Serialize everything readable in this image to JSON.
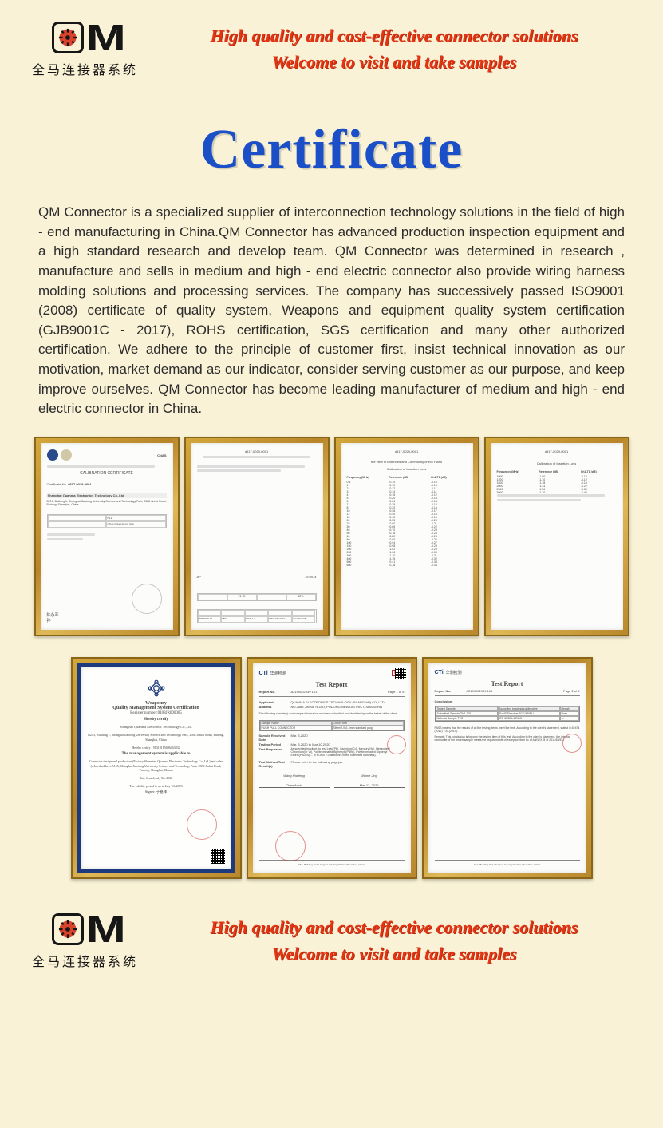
{
  "colors": {
    "page_bg": "#f9f2d6",
    "accent_red": "#e33513",
    "title_blue": "#1b4fc7",
    "frame_gold_light": "#dfb858",
    "frame_gold_dark": "#b8862a",
    "cert_blue_border": "#1d3a7c",
    "logo_black": "#161616",
    "gear_red": "#d9432b"
  },
  "logo": {
    "text": "M",
    "chinese": "全马连接器系统",
    "gear_icon_name": "gear-icon"
  },
  "tagline": {
    "line1": "High quality and cost-effective connector solutions",
    "line2": "Welcome to visit and take samples"
  },
  "title": "Certificate",
  "body": "QM Connector is a specialized supplier of interconnection technology solutions in the field of high - end manufacturing in China.QM Connector has advanced production inspection equipment and a high standard research and develop team. QM Connector was determined in research , manufacture and sells in medium and high - end electric connector also provide wiring harness molding solutions and processing services. The company has successively passed ISO9001 (2008) certificate of quality system, Weapons and equipment quality system certification (GJB9001C - 2017), ROHS certification, SGS certification and many other authorized certification. We adhere to the principle of customer first, insist technical innovation as our motivation, market demand as our indicator, consider serving customer as our purpose, and keep improve ourselves. QM Connector has become leading manufacturer of medium and high - end electric connector in China.",
  "certs_row1": [
    {
      "type": "calibration",
      "badges": [
        "ilac-MRA",
        "CNAS"
      ],
      "title": "CALIBRATION CERTIFICATE",
      "cert_no_label": "Certificate No.",
      "cert_no": "d517-0029-0001",
      "org": "Shanghai Quanma Electronics Technology Co.,Ltd",
      "addr": "B213, Building 1, Shanghai Jiaotong University Science and Technology Park, 2588 Jinhai Road, Pudong, Shanghai, China",
      "instrument": "PLD",
      "model": "PRO-SN/ZKB-01 300"
    },
    {
      "type": "data-sheet",
      "header_no": "d517-0029-0001",
      "temp_label": "AP",
      "temp_val": "79.0014",
      "room_temp": "21 °C",
      "humidity": "60%",
      "table_rows": [
        [
          "88005039-10",
          "0837",
          "0001-1-2",
          "MFG:270.0310",
          "H2:170.03dB"
        ]
      ]
    },
    {
      "type": "data-list",
      "header_no": "d517-0029-0001",
      "section": "the view of Extended and Commodity check Plans",
      "subtitle": "Calibration of Insertion Loss",
      "cols": [
        "Frequency (MHz)",
        "Reference (dB)",
        "Ch1-T1 (dB)"
      ],
      "rows": [
        [
          "0.3",
          "-0.10",
          "-0.10"
        ],
        [
          "1",
          "-0.10",
          "-0.10"
        ],
        [
          "2",
          "-0.12",
          "-0.11"
        ],
        [
          "3",
          "-0.14",
          "-0.11"
        ],
        [
          "4",
          "-0.16",
          "-0.12"
        ],
        [
          "5",
          "-0.20",
          "-0.13"
        ],
        [
          "6",
          "-0.24",
          "-0.14"
        ],
        [
          "7",
          "-0.28",
          "-0.15"
        ],
        [
          "8",
          "-0.30",
          "-0.16"
        ],
        [
          "10",
          "-0.36",
          "-0.17"
        ],
        [
          "12",
          "-0.40",
          "-0.18"
        ],
        [
          "15",
          "-0.45",
          "-0.19"
        ],
        [
          "20",
          "-0.55",
          "-0.20"
        ],
        [
          "25",
          "-0.60",
          "-0.21"
        ],
        [
          "30",
          "-0.65",
          "-0.22"
        ],
        [
          "40",
          "-0.70",
          "-0.23"
        ],
        [
          "50",
          "-0.78",
          "-0.24"
        ],
        [
          "60",
          "-0.82",
          "-0.25"
        ],
        [
          "80",
          "-0.90",
          "-0.26"
        ],
        [
          "100",
          "-0.94",
          "-0.27"
        ],
        [
          "150",
          "-0.98",
          "-0.28"
        ],
        [
          "200",
          "-1.02",
          "-0.29"
        ],
        [
          "250",
          "-1.06",
          "-0.30"
        ],
        [
          "300",
          "-1.10",
          "-0.31"
        ],
        [
          "400",
          "-1.15",
          "-0.32"
        ],
        [
          "500",
          "-0.41",
          "-0.33"
        ],
        [
          "600",
          "-0.18",
          "-0.34"
        ]
      ]
    },
    {
      "type": "data-list-short",
      "header_no": "d517-0029-0001",
      "subtitle": "Calibration of Insertion Loss",
      "cols": [
        "Frequency (MHz)",
        "Reference (dB)",
        "Ch1-T1 (dB)"
      ],
      "rows": [
        [
          "1000",
          "-1.00",
          "-0.10"
        ],
        [
          "1200",
          "-1.10",
          "-0.12"
        ],
        [
          "1500",
          "-1.18",
          "-0.15"
        ],
        [
          "2000",
          "-1.34",
          "-0.22"
        ],
        [
          "2500",
          "-1.50",
          "-0.30"
        ],
        [
          "3000",
          "-1.70",
          "-0.40"
        ]
      ]
    }
  ],
  "certs_row2": [
    {
      "type": "weaponry",
      "title1": "Weaponry",
      "title2": "Quality Management System Certification",
      "reg_label": "Register number:0108JR000005",
      "hereby": "Hereby certify",
      "org": "Shanghai Quanma Electronic Technology Co.,Ltd.",
      "addr": "B213, Building 1, Shanghai Jiaotong University Science and Technology Park, 2588 Jinhai Road, Pudong, Shanghai, China",
      "cert_line": "Hereby certify : 91310115696463832",
      "scope_title": "The management system is applicable to",
      "scope": "Connector design and production (Factory:Shenzhen Quanma Electronic Technology Co.,Ltd.) and sales (related address:A155, Shanghai Jiaotong University Science and Technology Park, 2588 Jinhai Road, Pudong, Shanghai, China)",
      "date_issued": "Date Issued:July 8th 2020",
      "validity": "The validity period is up to July 7th 2023",
      "signer": "Signer: 于嘉祥"
    },
    {
      "type": "cti-report",
      "logo": "CTi",
      "logo_cn": "华测检测",
      "cma": "MA",
      "title": "Test Report",
      "report_no_label": "Report No.",
      "report_no": "A2190002939 101",
      "page": "Page 1 of 5",
      "applicant_label": "Applicant",
      "applicant": "QUANMA ELECTRONICS TECHNOLOGY (SHANGHAI) CO.,LTD",
      "address_label": "Address",
      "address": "NO.2588 JINHAI ROAD, PUDONG NEW DISTRICT, SHANGHAI",
      "intro": "The following sample(s) and sample information was/were submitted and identified by/on the behalf of the client:",
      "table_cols": [
        "Sample Name",
        "Color/Form"
      ],
      "table_rows": [
        [
          "PUSH PULL CONNECTOR",
          "Silver/2.0x1.5mm standard plug"
        ]
      ],
      "recv_label": "Sample Received Date",
      "recv": "Mar. 3,2020",
      "period_label": "Testing Period",
      "period": "Mar. 3,2020 to Mar 10,2020",
      "req_label": "Test Requested",
      "req": "As specified by client, to test Lead(Pb), Cadmium(Cd), Mercury(Hg), Hexavalent Chromium(Cr VI), Polybrominated Biphenyls(PBBs), Polybrominated Diphenyl Ethers(PBDEs) ... in ROHS 2.0 directives in the submitted sample(s).",
      "result_label": "Test Method/Test Result(s)",
      "result": "Please refer to the following page(s).",
      "signers": [
        "Wang Haofeng",
        "Winnie Jing",
        "Chen Anxin"
      ],
      "sign_date": "Mar 12, 2020"
    },
    {
      "type": "cti-report-2",
      "logo": "CTi",
      "logo_cn": "华测检测",
      "title": "Test Report",
      "report_no_label": "Report No.",
      "report_no": "A2190002939 101",
      "page": "Page 2 of 5",
      "section": "Conclusion:",
      "concl_cols": [
        "Tested Sample",
        "According to standard/directive",
        "Result"
      ],
      "concl_rows": [
        [
          "Submitted Sample TH1-001",
          "RoHS Directive 2011/65/EU",
          "Pass"
        ],
        [
          "Material Sample TH2",
          "IEC 62321-4:2013",
          "—"
        ]
      ],
      "note": "PASS means that the results of all the testing items meet the limit. According to the client's statement, stated in 62474 (2012) + A1(2014).",
      "remark": "Remark: This conclusion is for only the testing item of this test. According to the client's statement, the internal composite of the tested sample meets the requirements of exception item 6c of ANNEX III of 2011/65/EU."
    }
  ]
}
